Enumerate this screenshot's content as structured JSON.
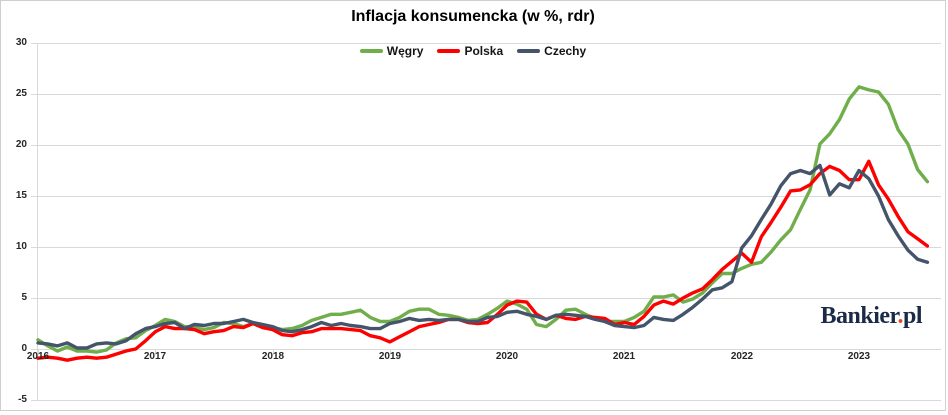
{
  "chart_data": {
    "type": "line",
    "title": "Inflacja konsumencka (w %, rdr)",
    "frequency": "monthly",
    "x_start": "2016-01",
    "x_end": "2023-08",
    "x_tick_labels": [
      "2016",
      "2017",
      "2018",
      "2019",
      "2020",
      "2021",
      "2022",
      "2023"
    ],
    "y_ticks": [
      30,
      25,
      20,
      15,
      10,
      5,
      0,
      -5
    ],
    "ylim": [
      -5,
      30
    ],
    "grid": "horizontal",
    "legend_position": "top-center",
    "colors": {
      "grid": "#d9d9d9",
      "axis_labels": "#262626"
    },
    "series": [
      {
        "name": "Węgry",
        "color": "#6fae4b",
        "values": [
          0.9,
          0.3,
          -0.2,
          0.2,
          -0.2,
          -0.2,
          -0.3,
          -0.1,
          0.6,
          1.0,
          1.1,
          1.8,
          2.3,
          2.9,
          2.7,
          2.2,
          2.1,
          1.9,
          2.1,
          2.6,
          2.5,
          2.2,
          2.5,
          2.1,
          2.1,
          1.9,
          2.0,
          2.3,
          2.8,
          3.1,
          3.4,
          3.4,
          3.6,
          3.8,
          3.1,
          2.7,
          2.7,
          3.1,
          3.7,
          3.9,
          3.9,
          3.4,
          3.3,
          3.1,
          2.8,
          2.9,
          3.4,
          4.0,
          4.7,
          4.4,
          3.9,
          2.4,
          2.2,
          2.9,
          3.8,
          3.9,
          3.4,
          3.0,
          2.7,
          2.7,
          2.7,
          3.1,
          3.7,
          5.1,
          5.1,
          5.3,
          4.6,
          4.9,
          5.5,
          6.5,
          7.4,
          7.4,
          7.9,
          8.3,
          8.5,
          9.5,
          10.7,
          11.7,
          13.7,
          15.6,
          20.1,
          21.1,
          22.5,
          24.5,
          25.7,
          25.4,
          25.2,
          24.0,
          21.5,
          20.1,
          17.6,
          16.4
        ]
      },
      {
        "name": "Polska",
        "color": "#ff0000",
        "values": [
          -0.9,
          -0.8,
          -0.9,
          -1.1,
          -0.9,
          -0.8,
          -0.9,
          -0.8,
          -0.5,
          -0.2,
          0.0,
          0.8,
          1.7,
          2.2,
          2.0,
          2.0,
          1.9,
          1.5,
          1.7,
          1.8,
          2.2,
          2.1,
          2.5,
          2.1,
          1.9,
          1.4,
          1.3,
          1.6,
          1.7,
          2.0,
          2.0,
          2.0,
          1.9,
          1.8,
          1.3,
          1.1,
          0.7,
          1.2,
          1.7,
          2.2,
          2.4,
          2.6,
          2.9,
          2.9,
          2.6,
          2.5,
          2.6,
          3.4,
          4.3,
          4.7,
          4.6,
          3.4,
          2.9,
          3.3,
          3.0,
          2.9,
          3.2,
          3.1,
          3.0,
          2.4,
          2.6,
          2.4,
          3.2,
          4.3,
          4.7,
          4.4,
          5.0,
          5.5,
          5.9,
          6.8,
          7.8,
          8.6,
          9.4,
          8.5,
          11.0,
          12.4,
          13.9,
          15.5,
          15.6,
          16.1,
          17.2,
          17.9,
          17.5,
          16.6,
          16.6,
          18.4,
          16.1,
          14.7,
          13.0,
          11.5,
          10.8,
          10.1
        ]
      },
      {
        "name": "Czechy",
        "color": "#44546a",
        "values": [
          0.6,
          0.5,
          0.3,
          0.6,
          0.1,
          0.1,
          0.5,
          0.6,
          0.5,
          0.8,
          1.5,
          2.0,
          2.2,
          2.5,
          2.6,
          2.0,
          2.4,
          2.3,
          2.5,
          2.5,
          2.7,
          2.9,
          2.6,
          2.4,
          2.2,
          1.8,
          1.7,
          1.9,
          2.2,
          2.6,
          2.3,
          2.5,
          2.3,
          2.2,
          2.0,
          2.0,
          2.5,
          2.7,
          3.0,
          2.8,
          2.9,
          2.8,
          2.9,
          2.9,
          2.7,
          2.7,
          3.1,
          3.2,
          3.6,
          3.7,
          3.4,
          3.2,
          2.9,
          3.3,
          3.4,
          3.3,
          3.2,
          2.9,
          2.7,
          2.3,
          2.2,
          2.1,
          2.3,
          3.1,
          2.9,
          2.8,
          3.4,
          4.1,
          4.9,
          5.8,
          6.0,
          6.6,
          9.9,
          11.1,
          12.7,
          14.2,
          16.0,
          17.2,
          17.5,
          17.2,
          18.0,
          15.1,
          16.2,
          15.8,
          17.5,
          16.7,
          15.0,
          12.7,
          11.1,
          9.7,
          8.8,
          8.5
        ]
      }
    ]
  },
  "logo": {
    "name": "Bankier",
    "dot": ".",
    "tld": "pl"
  }
}
